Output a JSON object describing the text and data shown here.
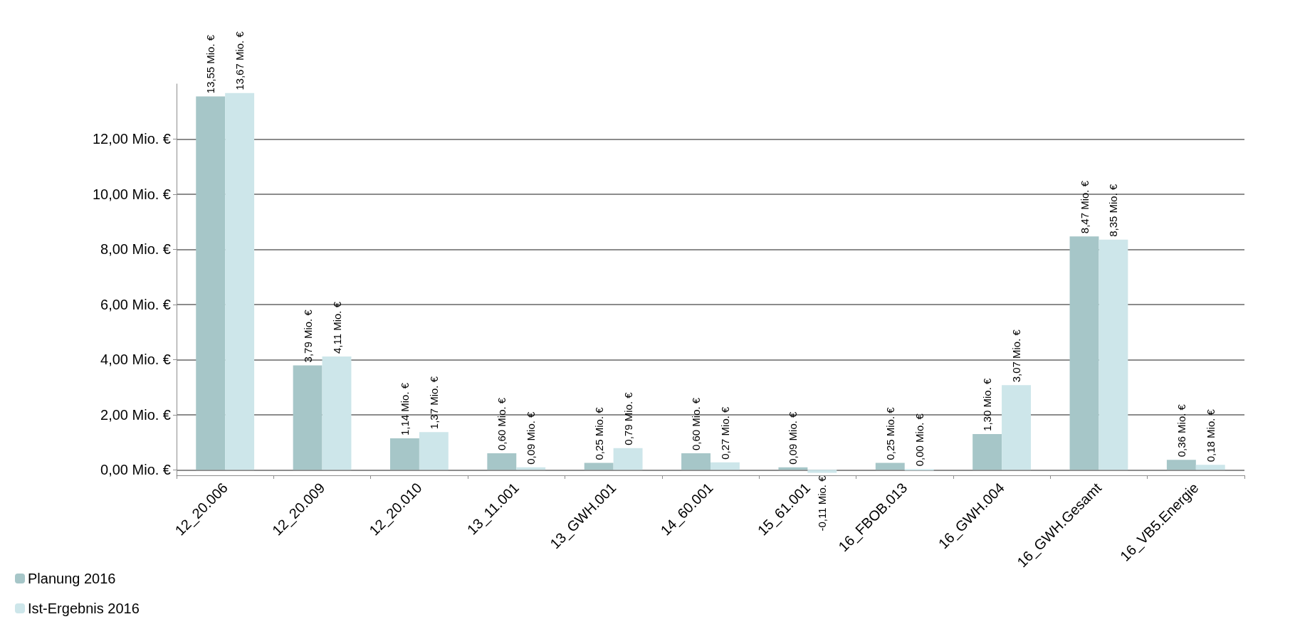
{
  "chart_data": {
    "type": "bar",
    "categories": [
      "12_20.006",
      "12_20.009",
      "12_20.010",
      "13_11.001",
      "13_GWH.001",
      "14_60.001",
      "15_61.001",
      "16_FBOB.013",
      "16_GWH.004",
      "16_GWH.Gesamt",
      "16_VB5.Energie"
    ],
    "series": [
      {
        "name": "Planung 2016",
        "color": "#a6c6c8",
        "values": [
          13.55,
          3.79,
          1.14,
          0.6,
          0.25,
          0.6,
          0.09,
          0.25,
          1.3,
          8.47,
          0.36
        ],
        "value_labels": [
          "13,55 Mio. €",
          "3,79 Mio. €",
          "1,14 Mio. €",
          "0,60 Mio. €",
          "0,25 Mio. €",
          "0,60 Mio. €",
          "0,09 Mio. €",
          "0,25 Mio. €",
          "1,30 Mio. €",
          "8,47 Mio. €",
          "0,36 Mio. €"
        ]
      },
      {
        "name": "Ist-Ergebnis 2016",
        "color": "#cde6ea",
        "values": [
          13.67,
          4.11,
          1.37,
          0.09,
          0.79,
          0.27,
          -0.11,
          0.0,
          3.07,
          8.35,
          0.18
        ],
        "value_labels": [
          "13,67 Mio. €",
          "4,11 Mio. €",
          "1,37 Mio. €",
          "0,09 Mio. €",
          "0,79 Mio. €",
          "0,27 Mio. €",
          "-0,11 Mio. €",
          "0,00 Mio. €",
          "3,07 Mio. €",
          "8,35 Mio. €",
          "0,18 Mio. €"
        ]
      }
    ],
    "ylim": [
      -0.2,
      14
    ],
    "yticks": [
      {
        "value": 0,
        "label": "0,00 Mio. €"
      },
      {
        "value": 2,
        "label": "2,00 Mio. €"
      },
      {
        "value": 4,
        "label": "4,00 Mio. €"
      },
      {
        "value": 6,
        "label": "6,00 Mio. €"
      },
      {
        "value": 8,
        "label": "8,00 Mio. €"
      },
      {
        "value": 10,
        "label": "10,00 Mio. €"
      },
      {
        "value": 12,
        "label": "12,00 Mio. €"
      }
    ],
    "grid": "y",
    "legend": "bottom left"
  }
}
